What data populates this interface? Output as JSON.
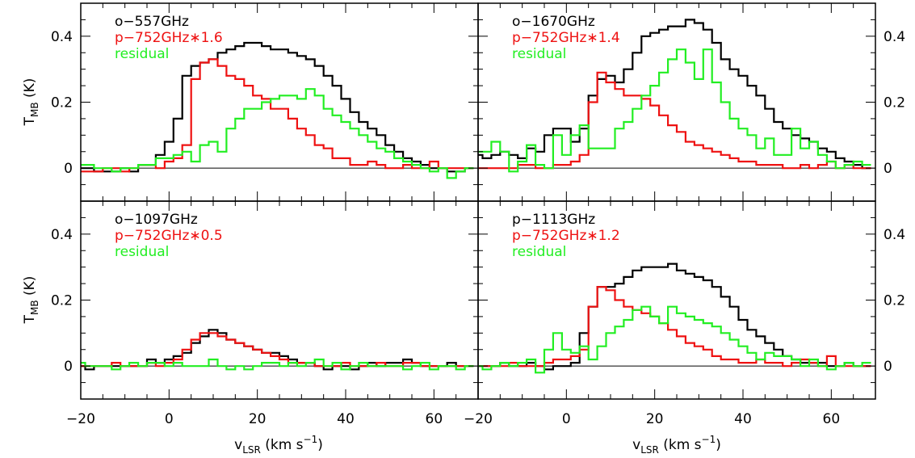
{
  "chart_data": {
    "type": "line",
    "layout": "2x2 grid, shared axes",
    "xlabel": "v_LSR (km s^-1)",
    "xlabel_parts": {
      "main": "v",
      "sub": "LSR",
      "rest": " (km s",
      "sup": "−1",
      "end": ")"
    },
    "ylabel": "T_MB (K)",
    "ylabel_parts": {
      "main": "T",
      "sub": "MB",
      "rest": " (K)"
    },
    "xlim": [
      -20,
      70
    ],
    "ylim": [
      -0.1,
      0.5
    ],
    "xticks_major": [
      -20,
      0,
      20,
      40,
      60
    ],
    "xtick_labels": [
      "−20",
      "0",
      "20",
      "40",
      "60"
    ],
    "yticks_major": [
      0,
      0.2,
      0.4
    ],
    "ytick_labels": [
      "0",
      "0.2",
      "0.4"
    ],
    "zero_line": true,
    "step_width_kms": 2.0,
    "colors": {
      "black": "#000000",
      "red": "#ee1111",
      "green": "#22ee22",
      "zero": "#000000"
    },
    "panels": [
      {
        "id": "top-left",
        "legend": [
          "o−557GHz",
          "p−752GHz∗1.6",
          "residual"
        ],
        "series": [
          {
            "color": "black",
            "x_start": -20,
            "values": [
              0.0,
              0.0,
              -0.01,
              -0.01,
              -0.01,
              0.0,
              -0.01,
              0.01,
              0.01,
              0.04,
              0.08,
              0.15,
              0.28,
              0.31,
              0.32,
              0.33,
              0.35,
              0.36,
              0.37,
              0.38,
              0.38,
              0.37,
              0.36,
              0.36,
              0.35,
              0.34,
              0.33,
              0.31,
              0.28,
              0.25,
              0.21,
              0.17,
              0.14,
              0.12,
              0.1,
              0.07,
              0.05,
              0.03,
              0.02,
              0.01,
              0.0,
              0.0,
              -0.01,
              -0.01,
              0.0
            ]
          },
          {
            "color": "red",
            "x_start": -20,
            "values": [
              -0.01,
              -0.01,
              -0.01,
              0.0,
              0.0,
              -0.01,
              0.0,
              0.01,
              0.01,
              0.0,
              0.02,
              0.03,
              0.07,
              0.27,
              0.32,
              0.33,
              0.31,
              0.28,
              0.27,
              0.25,
              0.22,
              0.21,
              0.18,
              0.18,
              0.15,
              0.12,
              0.1,
              0.07,
              0.06,
              0.03,
              0.03,
              0.01,
              0.01,
              0.02,
              0.01,
              0.0,
              0.0,
              0.01,
              0.0,
              0.0,
              0.02,
              0.0,
              0.0,
              0.0,
              0.0
            ]
          },
          {
            "color": "green",
            "x_start": -20,
            "values": [
              0.01,
              0.01,
              0.0,
              0.0,
              -0.01,
              0.0,
              0.0,
              0.01,
              0.01,
              0.03,
              0.03,
              0.04,
              0.05,
              0.02,
              0.07,
              0.08,
              0.05,
              0.12,
              0.15,
              0.18,
              0.18,
              0.2,
              0.21,
              0.22,
              0.22,
              0.21,
              0.24,
              0.22,
              0.18,
              0.16,
              0.14,
              0.12,
              0.1,
              0.08,
              0.06,
              0.05,
              0.03,
              0.02,
              0.01,
              0.0,
              -0.01,
              0.0,
              -0.03,
              -0.01,
              0.0
            ]
          }
        ]
      },
      {
        "id": "top-right",
        "legend": [
          "o−1670GHz",
          "p−752GHz∗1.4",
          "residual"
        ],
        "series": [
          {
            "color": "black",
            "x_start": -20,
            "values": [
              0.04,
              0.03,
              0.04,
              0.05,
              0.04,
              0.03,
              0.06,
              0.05,
              0.1,
              0.12,
              0.12,
              0.08,
              0.12,
              0.22,
              0.27,
              0.28,
              0.26,
              0.3,
              0.35,
              0.4,
              0.41,
              0.42,
              0.43,
              0.43,
              0.45,
              0.44,
              0.42,
              0.38,
              0.33,
              0.3,
              0.28,
              0.25,
              0.22,
              0.18,
              0.14,
              0.12,
              0.1,
              0.09,
              0.08,
              0.06,
              0.05,
              0.03,
              0.02,
              0.01,
              0.0
            ]
          },
          {
            "color": "red",
            "x_start": -20,
            "values": [
              0.0,
              0.0,
              0.0,
              0.0,
              0.0,
              0.01,
              0.01,
              0.0,
              0.0,
              0.01,
              0.01,
              0.02,
              0.04,
              0.2,
              0.29,
              0.26,
              0.24,
              0.22,
              0.22,
              0.21,
              0.19,
              0.16,
              0.13,
              0.11,
              0.08,
              0.07,
              0.06,
              0.05,
              0.04,
              0.03,
              0.02,
              0.02,
              0.01,
              0.01,
              0.01,
              0.0,
              0.0,
              0.01,
              0.0,
              0.01,
              0.02,
              0.0,
              0.01,
              0.0,
              0.0
            ]
          },
          {
            "color": "green",
            "x_start": -20,
            "values": [
              0.05,
              0.05,
              0.08,
              0.05,
              -0.01,
              0.02,
              0.07,
              0.01,
              0.0,
              0.1,
              0.04,
              0.1,
              0.13,
              0.06,
              0.06,
              0.06,
              0.12,
              0.14,
              0.18,
              0.22,
              0.25,
              0.29,
              0.33,
              0.36,
              0.32,
              0.27,
              0.36,
              0.26,
              0.2,
              0.15,
              0.12,
              0.1,
              0.06,
              0.09,
              0.04,
              0.04,
              0.12,
              0.06,
              0.08,
              0.04,
              0.02,
              0.0,
              0.01,
              0.02,
              0.01
            ]
          }
        ]
      },
      {
        "id": "bottom-left",
        "legend": [
          "o−1097GHz",
          "p−752GHz∗0.5",
          "residual"
        ],
        "series": [
          {
            "color": "black",
            "x_start": -20,
            "values": [
              0.0,
              -0.01,
              0.0,
              0.0,
              0.0,
              0.0,
              0.0,
              0.0,
              0.02,
              0.01,
              0.02,
              0.03,
              0.04,
              0.07,
              0.09,
              0.11,
              0.1,
              0.08,
              0.07,
              0.06,
              0.05,
              0.04,
              0.04,
              0.03,
              0.02,
              0.01,
              0.01,
              0.0,
              -0.01,
              0.0,
              0.0,
              -0.01,
              0.0,
              0.01,
              0.0,
              0.01,
              0.01,
              0.02,
              0.01,
              0.0,
              0.0,
              0.0,
              0.01,
              0.0,
              0.0
            ]
          },
          {
            "color": "red",
            "x_start": -20,
            "values": [
              0.0,
              0.0,
              0.0,
              0.0,
              0.01,
              0.0,
              0.0,
              0.0,
              0.01,
              0.0,
              0.01,
              0.02,
              0.05,
              0.08,
              0.1,
              0.1,
              0.09,
              0.08,
              0.07,
              0.06,
              0.05,
              0.04,
              0.03,
              0.02,
              0.01,
              0.01,
              0.01,
              0.0,
              0.0,
              0.0,
              0.01,
              0.0,
              0.0,
              0.0,
              0.01,
              0.0,
              0.0,
              0.01,
              0.01,
              0.0,
              0.0,
              0.0,
              0.0,
              0.0,
              0.0
            ]
          },
          {
            "color": "green",
            "x_start": -20,
            "values": [
              0.01,
              0.0,
              0.0,
              0.0,
              -0.01,
              0.0,
              0.01,
              0.0,
              0.01,
              0.01,
              0.0,
              0.01,
              0.0,
              0.0,
              0.0,
              0.02,
              0.0,
              -0.01,
              0.0,
              -0.01,
              0.0,
              0.01,
              0.01,
              0.0,
              0.01,
              0.0,
              0.01,
              0.02,
              0.0,
              0.01,
              -0.01,
              0.0,
              0.01,
              0.0,
              0.0,
              0.0,
              0.0,
              -0.01,
              0.0,
              0.01,
              -0.01,
              0.0,
              0.0,
              -0.01,
              0.0
            ]
          }
        ]
      },
      {
        "id": "bottom-right",
        "legend": [
          "p−1113GHz",
          "p−752GHz∗1.2",
          "residual"
        ],
        "series": [
          {
            "color": "black",
            "x_start": -20,
            "values": [
              0.0,
              0.0,
              0.0,
              0.01,
              0.0,
              0.0,
              0.01,
              0.0,
              -0.01,
              0.0,
              0.0,
              0.01,
              0.1,
              0.18,
              0.24,
              0.24,
              0.25,
              0.27,
              0.29,
              0.3,
              0.3,
              0.3,
              0.31,
              0.29,
              0.28,
              0.27,
              0.26,
              0.24,
              0.21,
              0.18,
              0.14,
              0.11,
              0.09,
              0.07,
              0.05,
              0.03,
              0.02,
              0.01,
              0.01,
              0.01,
              0.0,
              0.0,
              0.01,
              0.0,
              0.0
            ]
          },
          {
            "color": "red",
            "x_start": -20,
            "values": [
              0.0,
              0.0,
              0.0,
              0.0,
              0.01,
              0.0,
              0.0,
              0.0,
              0.01,
              0.02,
              0.02,
              0.03,
              0.05,
              0.18,
              0.24,
              0.23,
              0.2,
              0.18,
              0.17,
              0.16,
              0.15,
              0.13,
              0.11,
              0.09,
              0.07,
              0.06,
              0.05,
              0.03,
              0.02,
              0.02,
              0.01,
              0.01,
              0.02,
              0.01,
              0.01,
              0.0,
              0.01,
              0.02,
              0.01,
              0.0,
              0.03,
              0.0,
              0.0,
              0.0,
              0.0
            ]
          },
          {
            "color": "green",
            "x_start": -20,
            "values": [
              0.0,
              -0.01,
              0.0,
              0.01,
              0.0,
              0.01,
              0.02,
              -0.02,
              0.05,
              0.1,
              0.05,
              0.04,
              0.06,
              0.02,
              0.06,
              0.1,
              0.12,
              0.14,
              0.17,
              0.18,
              0.15,
              0.13,
              0.18,
              0.16,
              0.15,
              0.14,
              0.13,
              0.12,
              0.1,
              0.08,
              0.06,
              0.04,
              0.02,
              0.04,
              0.03,
              0.03,
              0.02,
              0.0,
              0.02,
              0.0,
              -0.01,
              0.0,
              0.01,
              0.0,
              0.01
            ]
          }
        ]
      }
    ]
  }
}
